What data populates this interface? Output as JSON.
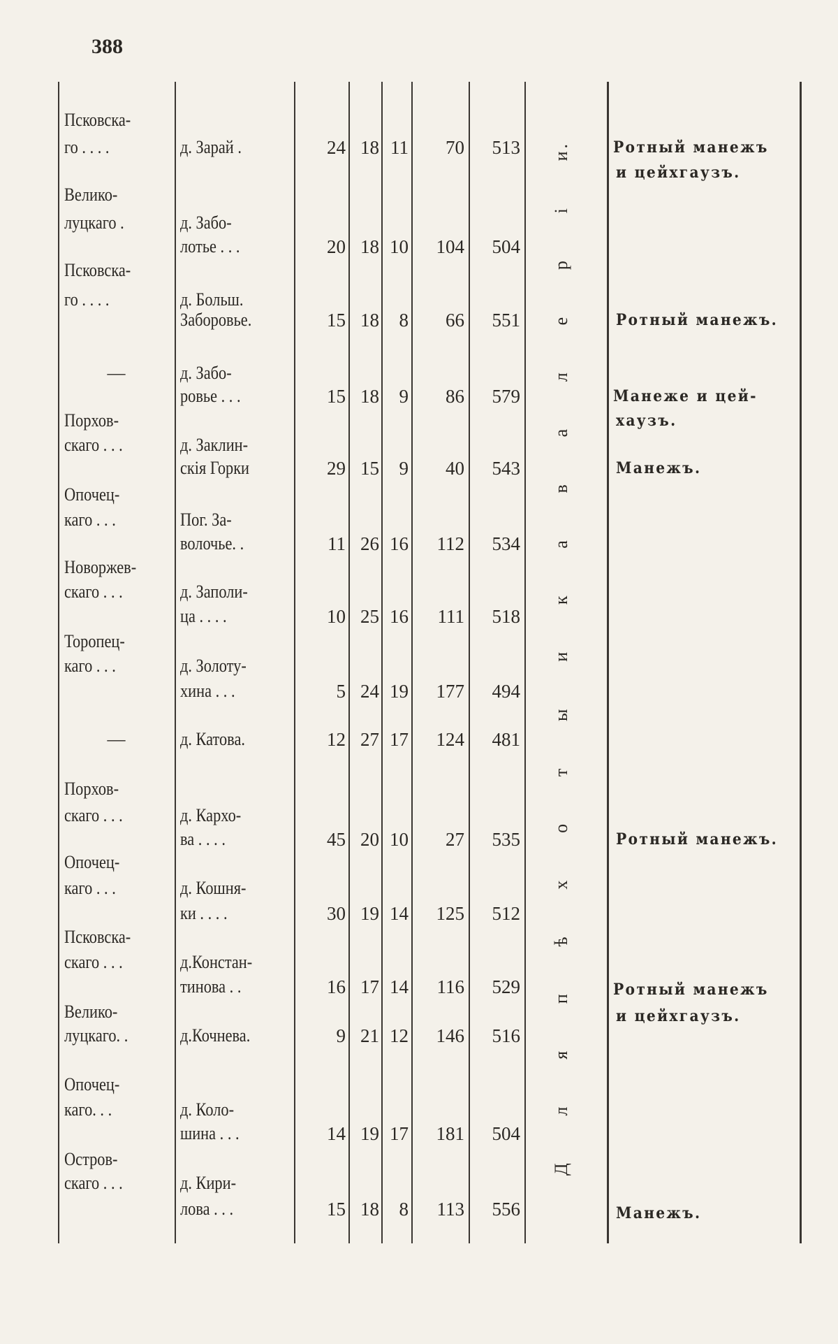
{
  "page_number": "388",
  "vertical_label": "Д л я   п ѣ х о т ы   и   к а в а л е р і и.",
  "rows": [
    {
      "district": [
        "Псковска-",
        "го . . . ."
      ],
      "village": [
        "д. Зарай ."
      ],
      "values": [
        "24",
        "18",
        "11",
        "70",
        "513"
      ],
      "note": [
        "Ротный манежъ",
        "и цейхгаузъ."
      ]
    },
    {
      "district": [
        "Велико-",
        "луцкаго ."
      ],
      "village": [
        "д.    Забо-",
        "лотье . . ."
      ],
      "values": [
        "20",
        "18",
        "10",
        "104",
        "504"
      ],
      "note": []
    },
    {
      "district": [
        "Псковска-",
        "го . . . ."
      ],
      "village": [
        "д. Больш.",
        "Заборовье."
      ],
      "values": [
        "15",
        "18",
        "8",
        "66",
        "551"
      ],
      "note": [
        "Ротный манежъ."
      ]
    },
    {
      "district": [
        "—"
      ],
      "village": [
        "д.    Забо-",
        "ровье . . ."
      ],
      "values": [
        "15",
        "18",
        "9",
        "86",
        "579"
      ],
      "note": [
        "Манеже  и  цей-",
        "хаузъ."
      ]
    },
    {
      "district": [
        "Порхов-",
        "скаго . . ."
      ],
      "village": [
        "д. Заклин-",
        "скія Горки"
      ],
      "values": [
        "29",
        "15",
        "9",
        "40",
        "543"
      ],
      "note": [
        "Манежъ."
      ]
    },
    {
      "district": [
        "Опочец-",
        "каго . . ."
      ],
      "village": [
        "Пог.    За-",
        "волочье. ."
      ],
      "values": [
        "11",
        "26",
        "16",
        "112",
        "534"
      ],
      "note": []
    },
    {
      "district": [
        "Новоржев-",
        "скаго . . ."
      ],
      "village": [
        "д. Заполи-",
        "ца . . . ."
      ],
      "values": [
        "10",
        "25",
        "16",
        "111",
        "518"
      ],
      "note": []
    },
    {
      "district": [
        "Торопец-",
        "каго . . ."
      ],
      "village": [
        "д. Золоту-",
        "хина . . ."
      ],
      "values": [
        "5",
        "24",
        "19",
        "177",
        "494"
      ],
      "note": []
    },
    {
      "district": [
        "—"
      ],
      "village": [
        "д. Катова."
      ],
      "values": [
        "12",
        "27",
        "17",
        "124",
        "481"
      ],
      "note": []
    },
    {
      "district": [
        "Порхов-",
        "скаго . . ."
      ],
      "village": [
        "д.   Кархо-",
        "ва . . . ."
      ],
      "values": [
        "45",
        "20",
        "10",
        "27",
        "535"
      ],
      "note": [
        "Ротный манежъ."
      ]
    },
    {
      "district": [
        "Опочец-",
        "каго . . ."
      ],
      "village": [
        "д. Кошня-",
        "ки . . . ."
      ],
      "values": [
        "30",
        "19",
        "14",
        "125",
        "512"
      ],
      "note": []
    },
    {
      "district": [
        "Псковска-",
        "скаго . . ."
      ],
      "village": [
        "д.Констан-",
        "тинова . ."
      ],
      "values": [
        "16",
        "17",
        "14",
        "116",
        "529"
      ],
      "note": [
        "Ротный манежъ",
        "и цейхгаузъ."
      ]
    },
    {
      "district": [
        "Велико-",
        "луцкаго. ."
      ],
      "village": [
        "д.Кочнева."
      ],
      "values": [
        "9",
        "21",
        "12",
        "146",
        "516"
      ],
      "note": []
    },
    {
      "district": [
        "Опочец-",
        "каго. . ."
      ],
      "village": [
        "д.   Коло-",
        "шина . . ."
      ],
      "values": [
        "14",
        "19",
        "17",
        "181",
        "504"
      ],
      "note": []
    },
    {
      "district": [
        "Остров-",
        "скаго . . ."
      ],
      "village": [
        "д.   Кири-",
        "лова . . ."
      ],
      "values": [
        "15",
        "18",
        "8",
        "113",
        "556"
      ],
      "note": [
        "Манежъ."
      ]
    }
  ]
}
